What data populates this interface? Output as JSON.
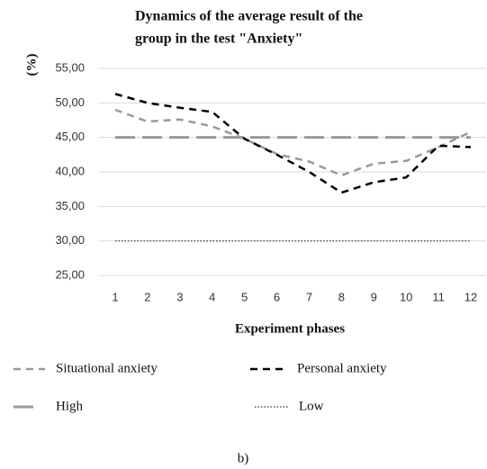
{
  "chart_data": {
    "type": "line",
    "title": [
      "Dynamics of the average result of the",
      "group in the test \"Anxiety\""
    ],
    "y_label": "(%)",
    "x_label": "Experiment phases",
    "caption": "b)",
    "categories": [
      1,
      2,
      3,
      4,
      5,
      6,
      7,
      8,
      9,
      10,
      11,
      12
    ],
    "ylim": [
      25,
      55
    ],
    "yticks": [
      {
        "value": 25,
        "label": "25,00"
      },
      {
        "value": 30,
        "label": "30,00"
      },
      {
        "value": 35,
        "label": "35,00"
      },
      {
        "value": 40,
        "label": "40,00"
      },
      {
        "value": 45,
        "label": "45,00"
      },
      {
        "value": 50,
        "label": "50,00"
      },
      {
        "value": 55,
        "label": "55,00"
      }
    ],
    "grid": true,
    "series": [
      {
        "name": "Situational anxiety",
        "color": "#999999",
        "style": "dashed",
        "values": [
          49.0,
          47.3,
          47.6,
          46.6,
          44.8,
          42.6,
          41.5,
          39.5,
          41.2,
          41.6,
          43.6,
          45.8
        ]
      },
      {
        "name": "Personal anxiety",
        "color": "#000000",
        "style": "dashed",
        "values": [
          51.3,
          50.0,
          49.3,
          48.7,
          44.8,
          42.5,
          40.0,
          37.0,
          38.5,
          39.2,
          43.8,
          43.6
        ]
      },
      {
        "name": "High",
        "color": "#999999",
        "style": "long-dashed",
        "values": [
          45,
          45,
          45,
          45,
          45,
          45,
          45,
          45,
          45,
          45,
          45,
          45
        ]
      },
      {
        "name": "Low",
        "color": "#555555",
        "style": "dotted",
        "values": [
          30,
          30,
          30,
          30,
          30,
          30,
          30,
          30,
          30,
          30,
          30,
          30
        ]
      }
    ]
  }
}
